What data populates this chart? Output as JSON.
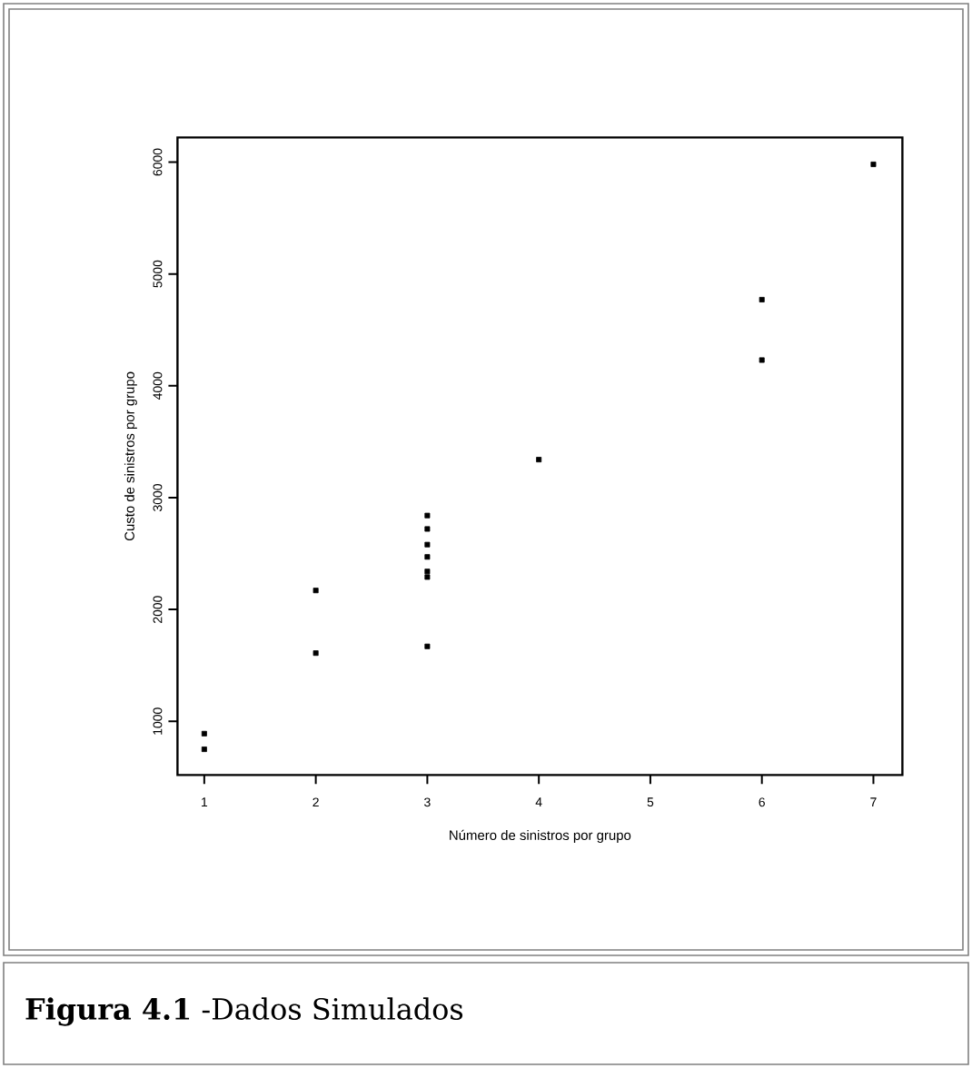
{
  "chart_data": {
    "type": "scatter",
    "xlabel": "Número de sinistros por grupo",
    "ylabel": "Custo de sinistros por grupo",
    "x": [
      1,
      1,
      2,
      2,
      3,
      3,
      3,
      3,
      3,
      3,
      3,
      4,
      6,
      6,
      7
    ],
    "series": [
      {
        "color": "#000000",
        "values": [
          890,
          750,
          2170,
          1610,
          1670,
          2840,
          2720,
          2580,
          2470,
          2340,
          2290,
          3340,
          4770,
          4230,
          5980
        ]
      }
    ],
    "xlim": [
      0.76,
      7.26
    ],
    "ylim": [
      520,
      6220
    ],
    "xticks": [
      1,
      2,
      3,
      4,
      5,
      6,
      7
    ],
    "yticks": [
      1000,
      2000,
      3000,
      4000,
      5000,
      6000
    ],
    "marker": "square",
    "grid": false,
    "annotations": [
      "**Figura 4.1** -Dados Simulados"
    ]
  }
}
